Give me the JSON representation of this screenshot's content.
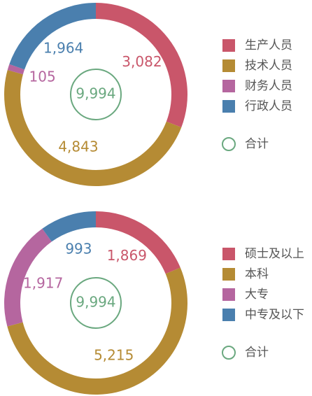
{
  "chart_data": [
    {
      "type": "donut",
      "categories": [
        "生产人员",
        "技术人员",
        "财务人员",
        "行政人员"
      ],
      "values": [
        3082,
        4843,
        105,
        1964
      ],
      "value_labels": [
        "3,082",
        "4,843",
        "105",
        "1,964"
      ],
      "colors": [
        "#c9566a",
        "#b58b34",
        "#b5669f",
        "#4a7fae"
      ],
      "total": {
        "value": 9994,
        "label": "9,994",
        "name": "合计",
        "color": "#6aa87f"
      }
    },
    {
      "type": "donut",
      "categories": [
        "硕士及以上",
        "本科",
        "大专",
        "中专及以下"
      ],
      "values": [
        1869,
        5215,
        1917,
        993
      ],
      "value_labels": [
        "1,869",
        "5,215",
        "1,917",
        "993"
      ],
      "colors": [
        "#c9566a",
        "#b58b34",
        "#b5669f",
        "#4a7fae"
      ],
      "total": {
        "value": 9994,
        "label": "9,994",
        "name": "合计",
        "color": "#6aa87f"
      }
    }
  ]
}
